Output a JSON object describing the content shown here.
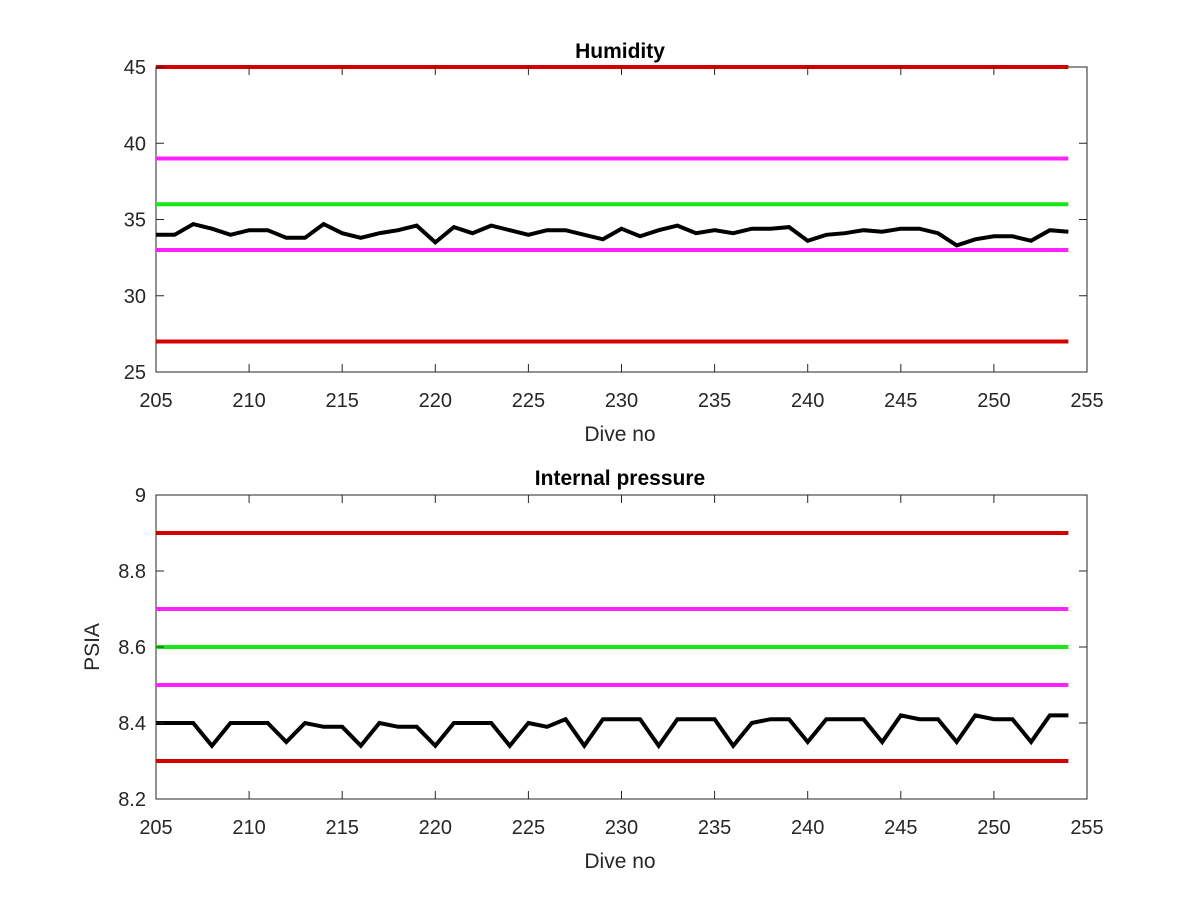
{
  "colors": {
    "limit_outer": "#d40000",
    "limit_middle": "#ff22ff",
    "target": "#16e816",
    "measured": "#000000",
    "axis": "#262626"
  },
  "chart_data": [
    {
      "type": "line",
      "title": "Humidity",
      "xlabel": "Dive no",
      "ylabel": "",
      "xlim": [
        205,
        255
      ],
      "ylim": [
        25,
        45
      ],
      "xticks": [
        "205",
        "210",
        "215",
        "220",
        "225",
        "230",
        "235",
        "240",
        "245",
        "250",
        "255"
      ],
      "yticks": [
        "25",
        "30",
        "35",
        "40",
        "45"
      ],
      "grid": false,
      "reference_lines": [
        {
          "y": 45,
          "x": [
            205,
            254
          ],
          "color_key": "limit_outer"
        },
        {
          "y": 39,
          "x": [
            205,
            254
          ],
          "color_key": "limit_middle"
        },
        {
          "y": 36,
          "x": [
            205,
            254
          ],
          "color_key": "target"
        },
        {
          "y": 33,
          "x": [
            205,
            254
          ],
          "color_key": "limit_middle"
        },
        {
          "y": 27,
          "x": [
            205,
            254
          ],
          "color_key": "limit_outer"
        }
      ],
      "series": [
        {
          "color_key": "measured",
          "x": [
            205,
            206,
            207,
            208,
            209,
            210,
            211,
            212,
            213,
            214,
            215,
            216,
            217,
            218,
            219,
            220,
            221,
            222,
            223,
            224,
            225,
            226,
            227,
            228,
            229,
            230,
            231,
            232,
            233,
            234,
            235,
            236,
            237,
            238,
            239,
            240,
            241,
            242,
            243,
            244,
            245,
            246,
            247,
            248,
            249,
            250,
            251,
            252,
            253,
            254
          ],
          "y": [
            34.0,
            34.0,
            34.7,
            34.4,
            34.0,
            34.3,
            34.3,
            33.8,
            33.8,
            34.7,
            34.1,
            33.8,
            34.1,
            34.3,
            34.6,
            33.5,
            34.5,
            34.1,
            34.6,
            34.3,
            34.0,
            34.3,
            34.3,
            34.0,
            33.7,
            34.4,
            33.9,
            34.3,
            34.6,
            34.1,
            34.3,
            34.1,
            34.4,
            34.4,
            34.5,
            33.6,
            34.0,
            34.1,
            34.3,
            34.2,
            34.4,
            34.4,
            34.1,
            33.3,
            33.7,
            33.9,
            33.9,
            33.6,
            34.3,
            34.2
          ]
        }
      ]
    },
    {
      "type": "line",
      "title": "Internal pressure",
      "xlabel": "Dive no",
      "ylabel": "PSIA",
      "xlim": [
        205,
        255
      ],
      "ylim": [
        8.2,
        9
      ],
      "xticks": [
        "205",
        "210",
        "215",
        "220",
        "225",
        "230",
        "235",
        "240",
        "245",
        "250",
        "255"
      ],
      "yticks": [
        "8.2",
        "8.4",
        "8.6",
        "8.8",
        "9"
      ],
      "grid": false,
      "reference_lines": [
        {
          "y": 8.9,
          "x": [
            205,
            254
          ],
          "color_key": "limit_outer"
        },
        {
          "y": 8.7,
          "x": [
            205,
            254
          ],
          "color_key": "limit_middle"
        },
        {
          "y": 8.6,
          "x": [
            205,
            254
          ],
          "color_key": "target"
        },
        {
          "y": 8.5,
          "x": [
            205,
            254
          ],
          "color_key": "limit_middle"
        },
        {
          "y": 8.3,
          "x": [
            205,
            254
          ],
          "color_key": "limit_outer"
        }
      ],
      "series": [
        {
          "color_key": "measured",
          "x": [
            205,
            206,
            207,
            208,
            209,
            210,
            211,
            212,
            213,
            214,
            215,
            216,
            217,
            218,
            219,
            220,
            221,
            222,
            223,
            224,
            225,
            226,
            227,
            228,
            229,
            230,
            231,
            232,
            233,
            234,
            235,
            236,
            237,
            238,
            239,
            240,
            241,
            242,
            243,
            244,
            245,
            246,
            247,
            248,
            249,
            250,
            251,
            252,
            253,
            254
          ],
          "y": [
            8.4,
            8.4,
            8.4,
            8.34,
            8.4,
            8.4,
            8.4,
            8.35,
            8.4,
            8.39,
            8.39,
            8.34,
            8.4,
            8.39,
            8.39,
            8.34,
            8.4,
            8.4,
            8.4,
            8.34,
            8.4,
            8.39,
            8.41,
            8.34,
            8.41,
            8.41,
            8.41,
            8.34,
            8.41,
            8.41,
            8.41,
            8.34,
            8.4,
            8.41,
            8.41,
            8.35,
            8.41,
            8.41,
            8.41,
            8.35,
            8.42,
            8.41,
            8.41,
            8.35,
            8.42,
            8.41,
            8.41,
            8.35,
            8.42,
            8.42
          ]
        }
      ]
    }
  ]
}
